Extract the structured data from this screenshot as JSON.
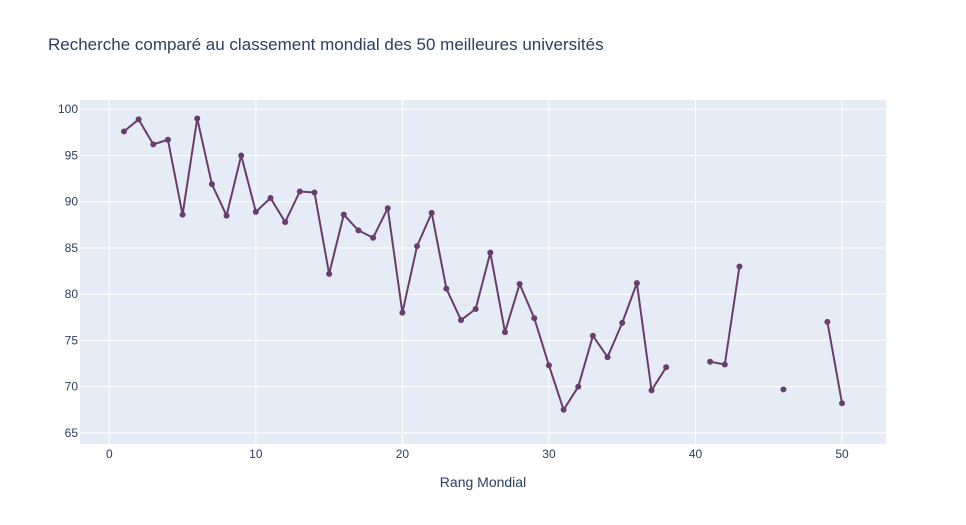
{
  "chart_data": {
    "type": "line",
    "title": "Recherche comparé au classement mondial des 50 meilleures universités",
    "xlabel": "Rang Mondial",
    "ylabel": "",
    "xlim": [
      -2,
      53
    ],
    "ylim": [
      63.8,
      101
    ],
    "xticks": [
      0,
      10,
      20,
      30,
      40,
      50
    ],
    "yticks": [
      65,
      70,
      75,
      80,
      85,
      90,
      95,
      100
    ],
    "grid": true,
    "colors": {
      "line": "#6a3d6e",
      "plot_bg": "#e5ecf6",
      "grid": "#ffffff",
      "text": "#2a3f5f"
    },
    "series": [
      {
        "points": [
          [
            1,
            97.6
          ],
          [
            2,
            98.9
          ],
          [
            3,
            96.2
          ],
          [
            4,
            96.7
          ],
          [
            5,
            88.6
          ],
          [
            6,
            99.0
          ],
          [
            7,
            91.9
          ],
          [
            8,
            88.5
          ],
          [
            9,
            95.0
          ],
          [
            10,
            88.9
          ],
          [
            11,
            90.4
          ],
          [
            12,
            87.8
          ],
          [
            13,
            91.1
          ],
          [
            14,
            91.0
          ],
          [
            15,
            82.2
          ],
          [
            16,
            88.6
          ],
          [
            17,
            86.9
          ],
          [
            18,
            86.1
          ],
          [
            19,
            89.3
          ],
          [
            20,
            78.0
          ],
          [
            21,
            85.2
          ],
          [
            22,
            88.8
          ],
          [
            23,
            80.6
          ],
          [
            24,
            77.2
          ],
          [
            25,
            78.4
          ],
          [
            26,
            84.5
          ],
          [
            27,
            75.9
          ],
          [
            28,
            81.1
          ],
          [
            29,
            77.4
          ],
          [
            30,
            72.3
          ],
          [
            31,
            67.5
          ],
          [
            32,
            70.0
          ],
          [
            33,
            75.5
          ],
          [
            34,
            73.2
          ],
          [
            35,
            76.9
          ],
          [
            36,
            81.2
          ],
          [
            37,
            69.6
          ],
          [
            38,
            72.1
          ],
          [
            39,
            null
          ],
          [
            40,
            null
          ],
          [
            41,
            72.7
          ],
          [
            42,
            72.4
          ],
          [
            43,
            83.0
          ],
          [
            44,
            null
          ],
          [
            45,
            null
          ],
          [
            46,
            69.7
          ],
          [
            47,
            null
          ],
          [
            48,
            null
          ],
          [
            49,
            77.0
          ],
          [
            50,
            68.2
          ]
        ]
      }
    ]
  }
}
